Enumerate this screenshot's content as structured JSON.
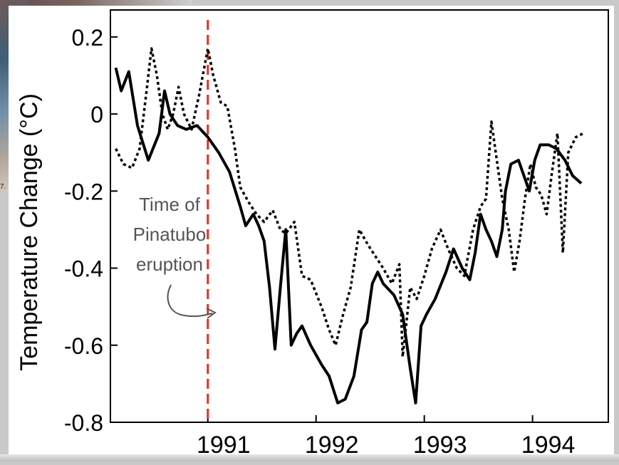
{
  "background": {
    "fragment_label": "7."
  },
  "chart_data": {
    "type": "line",
    "title": "",
    "xlabel": "",
    "ylabel": "Temperature Change (°C)",
    "xlim": [
      1990.1,
      1994.7
    ],
    "ylim": [
      -0.8,
      0.27
    ],
    "yticks": [
      0.2,
      0,
      -0.2,
      -0.4,
      -0.6,
      -0.8
    ],
    "ytick_labels": [
      "0.2",
      "0",
      "-0.2",
      "-0.4",
      "-0.6",
      "-0.8"
    ],
    "xticks": [
      1991,
      1992,
      1993,
      1994
    ],
    "xtick_labels": [
      "1991",
      "1992",
      "1993",
      "1994"
    ],
    "grid": false,
    "legend": "none",
    "colors": {
      "solid": "#000000",
      "dotted": "#000000",
      "eruption_line": "#ee2a1b",
      "annotation_text": "#555555"
    },
    "eruption": {
      "x": 1991.0,
      "label_lines": [
        "Time of",
        "Pinatubo",
        "eruption"
      ]
    },
    "series": [
      {
        "style": "solid",
        "points": [
          [
            1990.15,
            0.12
          ],
          [
            1990.2,
            0.06
          ],
          [
            1990.27,
            0.11
          ],
          [
            1990.35,
            -0.03
          ],
          [
            1990.45,
            -0.12
          ],
          [
            1990.55,
            -0.05
          ],
          [
            1990.6,
            0.06
          ],
          [
            1990.65,
            0.0
          ],
          [
            1990.72,
            -0.03
          ],
          [
            1990.8,
            -0.04
          ],
          [
            1990.9,
            -0.03
          ],
          [
            1991.0,
            -0.06
          ],
          [
            1991.1,
            -0.1
          ],
          [
            1991.2,
            -0.15
          ],
          [
            1991.3,
            -0.24
          ],
          [
            1991.35,
            -0.29
          ],
          [
            1991.42,
            -0.26
          ],
          [
            1991.47,
            -0.29
          ],
          [
            1991.52,
            -0.33
          ],
          [
            1991.57,
            -0.45
          ],
          [
            1991.62,
            -0.61
          ],
          [
            1991.67,
            -0.45
          ],
          [
            1991.72,
            -0.3
          ],
          [
            1991.77,
            -0.6
          ],
          [
            1991.82,
            -0.57
          ],
          [
            1991.87,
            -0.55
          ],
          [
            1991.95,
            -0.6
          ],
          [
            1992.05,
            -0.65
          ],
          [
            1992.12,
            -0.68
          ],
          [
            1992.2,
            -0.75
          ],
          [
            1992.27,
            -0.74
          ],
          [
            1992.35,
            -0.68
          ],
          [
            1992.42,
            -0.56
          ],
          [
            1992.47,
            -0.54
          ],
          [
            1992.52,
            -0.44
          ],
          [
            1992.57,
            -0.41
          ],
          [
            1992.62,
            -0.44
          ],
          [
            1992.72,
            -0.47
          ],
          [
            1992.8,
            -0.52
          ],
          [
            1992.87,
            -0.66
          ],
          [
            1992.92,
            -0.75
          ],
          [
            1992.97,
            -0.55
          ],
          [
            1993.02,
            -0.52
          ],
          [
            1993.1,
            -0.48
          ],
          [
            1993.2,
            -0.41
          ],
          [
            1993.27,
            -0.35
          ],
          [
            1993.35,
            -0.4
          ],
          [
            1993.42,
            -0.43
          ],
          [
            1993.47,
            -0.36
          ],
          [
            1993.52,
            -0.26
          ],
          [
            1993.57,
            -0.3
          ],
          [
            1993.62,
            -0.33
          ],
          [
            1993.67,
            -0.37
          ],
          [
            1993.72,
            -0.3
          ],
          [
            1993.75,
            -0.2
          ],
          [
            1993.8,
            -0.13
          ],
          [
            1993.87,
            -0.12
          ],
          [
            1993.92,
            -0.16
          ],
          [
            1993.97,
            -0.2
          ],
          [
            1994.02,
            -0.12
          ],
          [
            1994.07,
            -0.08
          ],
          [
            1994.15,
            -0.08
          ],
          [
            1994.22,
            -0.09
          ],
          [
            1994.3,
            -0.12
          ],
          [
            1994.37,
            -0.16
          ],
          [
            1994.45,
            -0.18
          ]
        ]
      },
      {
        "style": "dotted",
        "points": [
          [
            1990.15,
            -0.09
          ],
          [
            1990.22,
            -0.13
          ],
          [
            1990.3,
            -0.14
          ],
          [
            1990.37,
            -0.09
          ],
          [
            1990.43,
            0.05
          ],
          [
            1990.48,
            0.17
          ],
          [
            1990.53,
            0.1
          ],
          [
            1990.58,
            0.0
          ],
          [
            1990.63,
            -0.04
          ],
          [
            1990.68,
            0.0
          ],
          [
            1990.73,
            0.07
          ],
          [
            1990.78,
            0.0
          ],
          [
            1990.85,
            -0.04
          ],
          [
            1990.92,
            0.05
          ],
          [
            1991.0,
            0.17
          ],
          [
            1991.05,
            0.1
          ],
          [
            1991.12,
            0.03
          ],
          [
            1991.18,
            0.02
          ],
          [
            1991.25,
            -0.09
          ],
          [
            1991.3,
            -0.19
          ],
          [
            1991.38,
            -0.23
          ],
          [
            1991.45,
            -0.26
          ],
          [
            1991.52,
            -0.28
          ],
          [
            1991.6,
            -0.25
          ],
          [
            1991.67,
            -0.3
          ],
          [
            1991.72,
            -0.31
          ],
          [
            1991.8,
            -0.28
          ],
          [
            1991.87,
            -0.42
          ],
          [
            1991.95,
            -0.43
          ],
          [
            1992.05,
            -0.5
          ],
          [
            1992.12,
            -0.56
          ],
          [
            1992.18,
            -0.6
          ],
          [
            1992.25,
            -0.52
          ],
          [
            1992.32,
            -0.45
          ],
          [
            1992.4,
            -0.3
          ],
          [
            1992.48,
            -0.34
          ],
          [
            1992.55,
            -0.37
          ],
          [
            1992.62,
            -0.4
          ],
          [
            1992.7,
            -0.44
          ],
          [
            1992.77,
            -0.39
          ],
          [
            1992.8,
            -0.63
          ],
          [
            1992.87,
            -0.45
          ],
          [
            1992.93,
            -0.48
          ],
          [
            1993.0,
            -0.42
          ],
          [
            1993.07,
            -0.35
          ],
          [
            1993.15,
            -0.3
          ],
          [
            1993.22,
            -0.35
          ],
          [
            1993.3,
            -0.4
          ],
          [
            1993.37,
            -0.42
          ],
          [
            1993.45,
            -0.3
          ],
          [
            1993.52,
            -0.24
          ],
          [
            1993.57,
            -0.22
          ],
          [
            1993.62,
            -0.02
          ],
          [
            1993.67,
            -0.12
          ],
          [
            1993.72,
            -0.22
          ],
          [
            1993.78,
            -0.3
          ],
          [
            1993.83,
            -0.41
          ],
          [
            1993.88,
            -0.33
          ],
          [
            1993.93,
            -0.22
          ],
          [
            1993.98,
            -0.13
          ],
          [
            1994.03,
            -0.19
          ],
          [
            1994.08,
            -0.21
          ],
          [
            1994.13,
            -0.26
          ],
          [
            1994.18,
            -0.15
          ],
          [
            1994.23,
            -0.05
          ],
          [
            1994.28,
            -0.36
          ],
          [
            1994.33,
            -0.1
          ],
          [
            1994.4,
            -0.06
          ],
          [
            1994.47,
            -0.05
          ]
        ]
      }
    ]
  }
}
